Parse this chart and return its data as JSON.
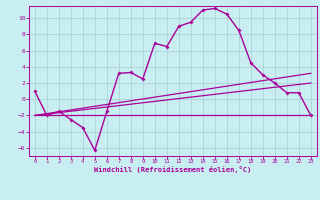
{
  "xlabel": "Windchill (Refroidissement éolien,°C)",
  "xlim": [
    -0.5,
    23.5
  ],
  "ylim": [
    -7,
    11.5
  ],
  "xticks": [
    0,
    1,
    2,
    3,
    4,
    5,
    6,
    7,
    8,
    9,
    10,
    11,
    12,
    13,
    14,
    15,
    16,
    17,
    18,
    19,
    20,
    21,
    22,
    23
  ],
  "yticks": [
    -6,
    -4,
    -2,
    0,
    2,
    4,
    6,
    8,
    10
  ],
  "background_color": "#c8eef2",
  "line_color": "#aa0099",
  "grid_color": "#a8cdd0",
  "curve_x": [
    0,
    1,
    2,
    3,
    4,
    5,
    6,
    7,
    8,
    9,
    10,
    11,
    12,
    13,
    14,
    15,
    16,
    17,
    18,
    19,
    20,
    21,
    22,
    23
  ],
  "curve_y": [
    1.0,
    -2.0,
    -1.5,
    -2.5,
    -3.5,
    -6.3,
    -1.5,
    3.2,
    3.3,
    2.5,
    6.9,
    6.5,
    9.0,
    9.5,
    11.0,
    11.2,
    10.5,
    8.5,
    4.5,
    3.0,
    2.0,
    0.8,
    0.8,
    -2.0
  ],
  "trend1_x": [
    0,
    23
  ],
  "trend1_y": [
    -2.0,
    3.2
  ],
  "trend2_x": [
    0,
    23
  ],
  "trend2_y": [
    -2.0,
    2.0
  ],
  "trend3_x": [
    0,
    23
  ],
  "trend3_y": [
    -2.0,
    -2.0
  ]
}
